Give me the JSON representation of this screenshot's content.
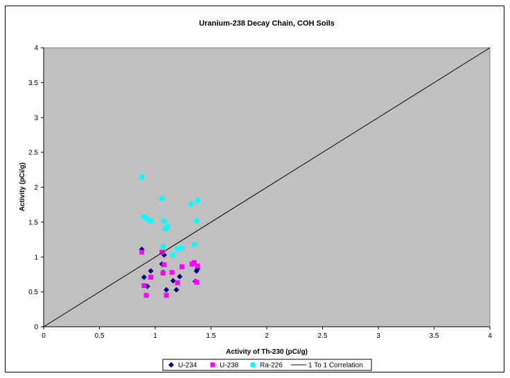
{
  "chart_data": {
    "type": "scatter",
    "title": "Uranium-238 Decay Chain, COH Soils",
    "xlabel": "Activity of Th-230 (pCi/g)",
    "ylabel": "Activity (pCi/g)",
    "xlim": [
      0,
      4
    ],
    "ylim": [
      0,
      4
    ],
    "xticks": [
      "0",
      "0.5",
      "1",
      "1.5",
      "2",
      "2.5",
      "3",
      "3.5",
      "4"
    ],
    "yticks": [
      "0",
      "0.5",
      "1",
      "1.5",
      "2",
      "2.5",
      "3",
      "3.5",
      "4"
    ],
    "grid": false,
    "legend_position": "bottom",
    "plot_background": "#C0C0C0",
    "series": [
      {
        "name": "U-234",
        "marker": "diamond",
        "color": "#000080",
        "points": [
          [
            0.88,
            1.11
          ],
          [
            0.9,
            0.71
          ],
          [
            0.93,
            0.58
          ],
          [
            0.96,
            0.8
          ],
          [
            1.06,
            0.9
          ],
          [
            1.07,
            0.78
          ],
          [
            1.08,
            1.03
          ],
          [
            1.1,
            0.53
          ],
          [
            1.16,
            0.66
          ],
          [
            1.19,
            0.53
          ],
          [
            1.22,
            0.72
          ],
          [
            1.33,
            0.9
          ],
          [
            1.36,
            0.65
          ],
          [
            1.37,
            0.8
          ],
          [
            1.38,
            0.83
          ]
        ]
      },
      {
        "name": "U-238",
        "marker": "square",
        "color": "#FF00FF",
        "points": [
          [
            0.88,
            1.07
          ],
          [
            0.9,
            0.59
          ],
          [
            0.92,
            0.45
          ],
          [
            0.96,
            0.71
          ],
          [
            1.06,
            1.07
          ],
          [
            1.07,
            0.77
          ],
          [
            1.08,
            0.89
          ],
          [
            1.1,
            0.45
          ],
          [
            1.15,
            0.78
          ],
          [
            1.2,
            0.63
          ],
          [
            1.24,
            0.86
          ],
          [
            1.33,
            0.9
          ],
          [
            1.35,
            0.92
          ],
          [
            1.37,
            0.64
          ],
          [
            1.38,
            0.87
          ]
        ]
      },
      {
        "name": "Ra-226",
        "marker": "circle",
        "color": "#00FFFF",
        "points": [
          [
            0.88,
            2.15
          ],
          [
            0.9,
            1.58
          ],
          [
            0.93,
            1.54
          ],
          [
            0.96,
            1.52
          ],
          [
            1.06,
            1.84
          ],
          [
            1.07,
            1.15
          ],
          [
            1.08,
            1.52
          ],
          [
            1.09,
            1.4
          ],
          [
            1.11,
            1.43
          ],
          [
            1.16,
            1.03
          ],
          [
            1.2,
            1.12
          ],
          [
            1.24,
            1.13
          ],
          [
            1.32,
            1.76
          ],
          [
            1.35,
            1.18
          ],
          [
            1.37,
            1.52
          ],
          [
            1.38,
            1.81
          ]
        ]
      },
      {
        "name": "1 To 1 Correlation",
        "marker": "line",
        "color": "#000000",
        "points": [
          [
            0,
            0
          ],
          [
            4,
            4
          ]
        ]
      }
    ]
  }
}
